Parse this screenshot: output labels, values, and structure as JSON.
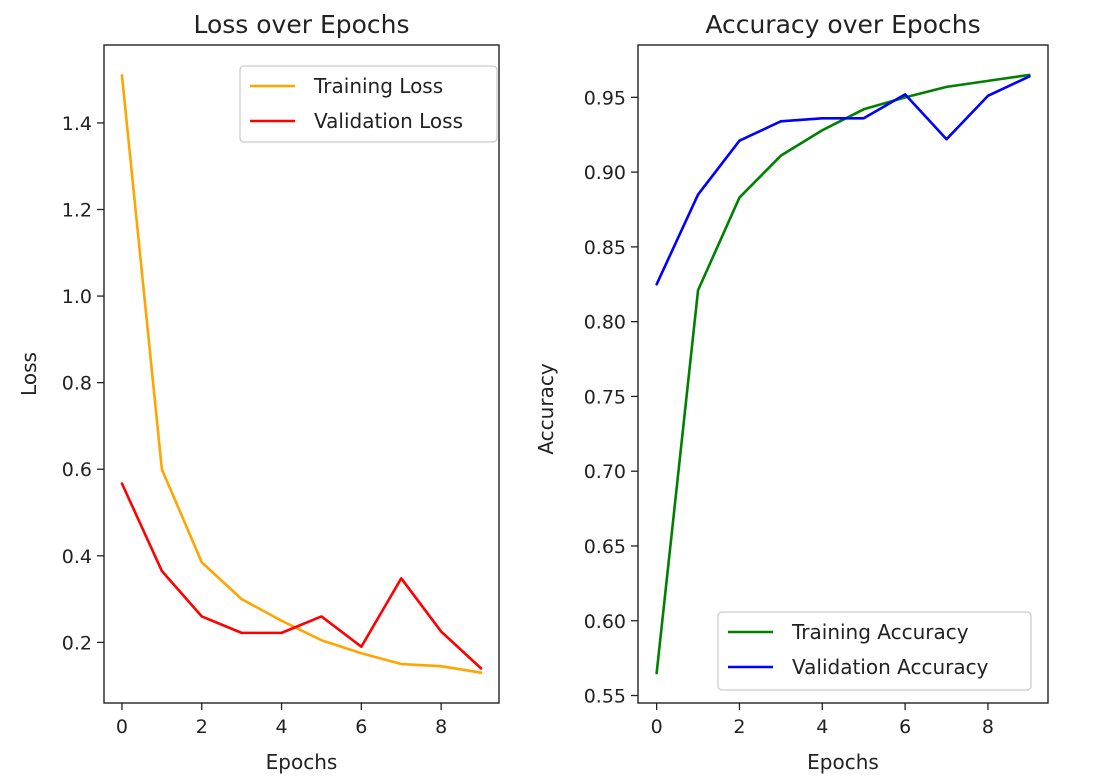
{
  "figure": {
    "background": "#ffffff"
  },
  "chart_data": [
    {
      "type": "line",
      "title": "Loss over Epochs",
      "xlabel": "Epochs",
      "ylabel": "Loss",
      "xlim": [
        -0.45,
        9.45
      ],
      "ylim": [
        0.06,
        1.58
      ],
      "xticks": [
        0,
        2,
        4,
        6,
        8
      ],
      "yticks": [
        0.2,
        0.4,
        0.6,
        0.8,
        1.0,
        1.2,
        1.4
      ],
      "ytick_labels": [
        "0.2",
        "0.4",
        "0.6",
        "0.8",
        "1.0",
        "1.2",
        "1.4"
      ],
      "legend_position": "top-right",
      "x": [
        0,
        1,
        2,
        3,
        4,
        5,
        6,
        7,
        8,
        9
      ],
      "series": [
        {
          "name": "Training Loss",
          "color": "#ffa500",
          "values": [
            1.51,
            0.6,
            0.385,
            0.3,
            0.25,
            0.205,
            0.175,
            0.15,
            0.145,
            0.13
          ]
        },
        {
          "name": "Validation Loss",
          "color": "#ff0000",
          "values": [
            0.567,
            0.365,
            0.26,
            0.222,
            0.222,
            0.26,
            0.19,
            0.348,
            0.225,
            0.14
          ]
        }
      ]
    },
    {
      "type": "line",
      "title": "Accuracy over Epochs",
      "xlabel": "Epochs",
      "ylabel": "Accuracy",
      "xlim": [
        -0.45,
        9.45
      ],
      "ylim": [
        0.545,
        0.985
      ],
      "xticks": [
        0,
        2,
        4,
        6,
        8
      ],
      "yticks": [
        0.55,
        0.6,
        0.65,
        0.7,
        0.75,
        0.8,
        0.85,
        0.9,
        0.95
      ],
      "ytick_labels": [
        "0.55",
        "0.60",
        "0.65",
        "0.70",
        "0.75",
        "0.80",
        "0.85",
        "0.90",
        "0.95"
      ],
      "legend_position": "bottom-right",
      "x": [
        0,
        1,
        2,
        3,
        4,
        5,
        6,
        7,
        8,
        9
      ],
      "series": [
        {
          "name": "Training Accuracy",
          "color": "#008000",
          "values": [
            0.565,
            0.821,
            0.883,
            0.911,
            0.928,
            0.942,
            0.95,
            0.957,
            0.961,
            0.965
          ]
        },
        {
          "name": "Validation Accuracy",
          "color": "#0000ff",
          "values": [
            0.825,
            0.885,
            0.921,
            0.934,
            0.936,
            0.936,
            0.952,
            0.922,
            0.951,
            0.964
          ]
        }
      ]
    }
  ]
}
